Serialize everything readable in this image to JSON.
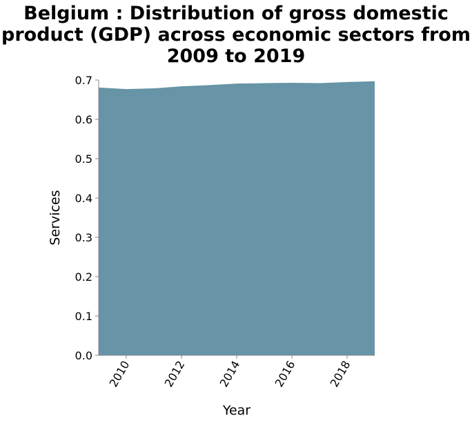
{
  "chart_data": {
    "type": "area",
    "title_lines": [
      "Belgium : Distribution of gross domestic",
      "product (GDP) across economic sectors from",
      "2009 to 2019"
    ],
    "xlabel": "Year",
    "ylabel": "Services",
    "x": [
      2009,
      2010,
      2011,
      2012,
      2013,
      2014,
      2015,
      2016,
      2017,
      2018,
      2019
    ],
    "series": [
      {
        "values": [
          0.681,
          0.677,
          0.679,
          0.684,
          0.687,
          0.691,
          0.692,
          0.693,
          0.692,
          0.695,
          0.697
        ]
      }
    ],
    "xlim": [
      2009,
      2019
    ],
    "ylim": [
      0,
      0.7
    ],
    "x_ticks": [
      2010,
      2012,
      2014,
      2016,
      2018
    ],
    "y_ticks": [
      "0.0",
      "0.1",
      "0.2",
      "0.3",
      "0.4",
      "0.5",
      "0.6",
      "0.7"
    ],
    "fill_color": "#6794a7",
    "grid": false
  }
}
